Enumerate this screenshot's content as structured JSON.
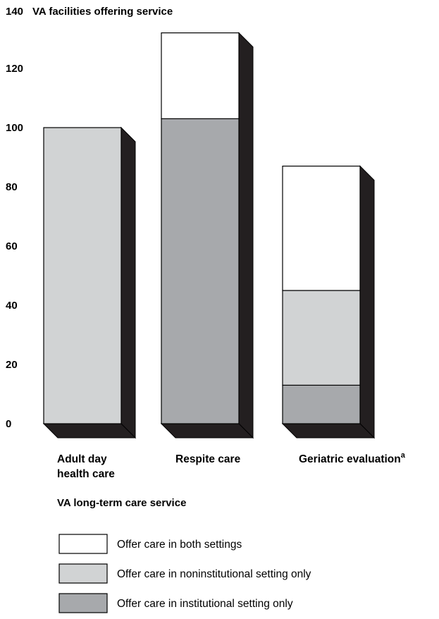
{
  "chart_data": {
    "type": "bar",
    "stacked": true,
    "three_d": true,
    "title": "",
    "ylabel": "VA facilities offering service",
    "xlabel": "VA long-term care service",
    "ylim": [
      0,
      140
    ],
    "yticks": [
      0,
      20,
      40,
      60,
      80,
      100,
      120,
      140
    ],
    "categories": [
      {
        "lines": [
          "Adult day",
          "health care"
        ],
        "superscript": ""
      },
      {
        "lines": [
          "Respite care"
        ],
        "superscript": ""
      },
      {
        "lines": [
          "Geriatric evaluation"
        ],
        "superscript": "a"
      }
    ],
    "series": [
      {
        "name": "Offer care in institutional setting only",
        "color": "#a7a9ac",
        "values": [
          0,
          103,
          13
        ]
      },
      {
        "name": "Offer care in noninstitutional setting only",
        "color": "#d1d3d4",
        "values": [
          100,
          0,
          32
        ]
      },
      {
        "name": "Offer care in both settings",
        "color": "#ffffff",
        "values": [
          0,
          29,
          42
        ]
      }
    ],
    "legend_order": [
      2,
      1,
      0
    ],
    "legend_position": "bottom-left",
    "grid": false
  }
}
